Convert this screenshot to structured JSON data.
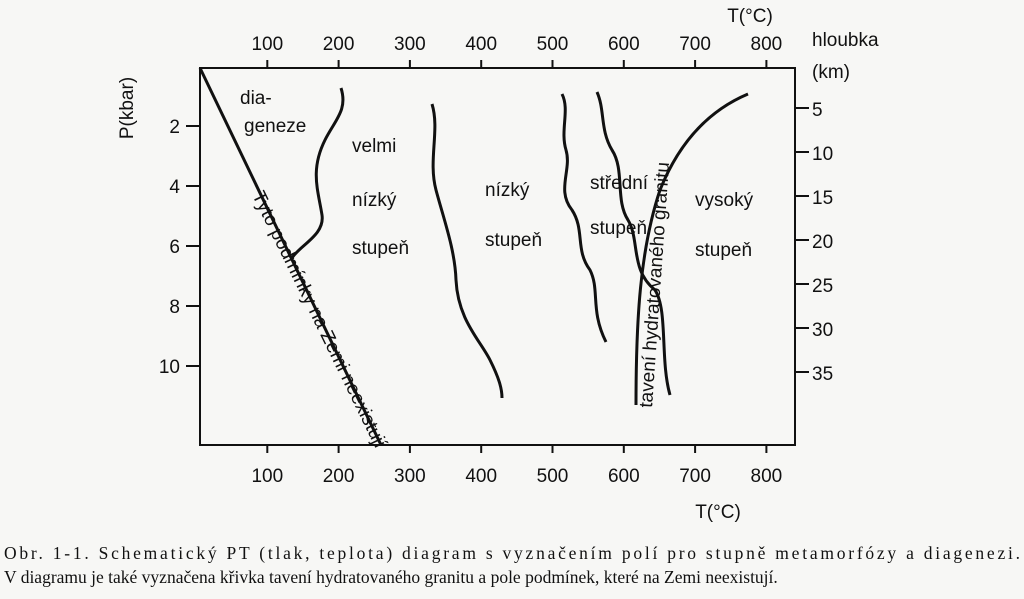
{
  "axes": {
    "top_title": "T(°C)",
    "top_ticks": [
      100,
      200,
      300,
      400,
      500,
      600,
      700,
      800
    ],
    "bottom_title": "T(°C)",
    "bottom_ticks": [
      100,
      200,
      300,
      400,
      500,
      600,
      700,
      800
    ],
    "left_title": "P(kbar)",
    "left_ticks": [
      2,
      4,
      6,
      8,
      10
    ],
    "right_title": [
      "hloubka",
      "(km)"
    ],
    "right_ticks": [
      5,
      10,
      15,
      20,
      25,
      30,
      35
    ]
  },
  "fields": [
    [
      "dia-",
      "geneze"
    ],
    [
      "velmi",
      "nízký",
      "stupeň"
    ],
    [
      "nízký",
      "stupeň"
    ],
    [
      "střední",
      "stupeň"
    ],
    [
      "vysoký",
      "stupeň"
    ]
  ],
  "line_labels": [
    "Tyto podmínky na Zemi neexistují",
    "tavení hydratovaného granitu"
  ],
  "caption": [
    "Obr. 1-1. Schematický PT (tlak, teplota) diagram s vyznačením polí pro stupně metamorfózy a diagenezi.",
    "V diagramu je také vyznačena křivka tavení hydratovaného granitu a pole podmínek, které na Zemi neexistují."
  ]
}
